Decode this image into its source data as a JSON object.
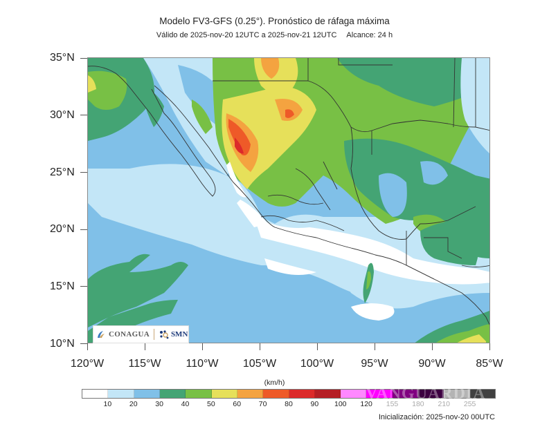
{
  "header": {
    "title": "Modelo FV3-GFS (0.25°). Pronóstico de ráfaga máxima",
    "valid": "Válido de 2025-nov-20 12UTC a 2025-nov-21 12UTC",
    "range": "Alcance: 24 h"
  },
  "map": {
    "lat_labels": [
      "35°N",
      "30°N",
      "25°N",
      "20°N",
      "15°N",
      "10°N"
    ],
    "lon_labels": [
      "120°W",
      "115°W",
      "110°W",
      "105°W",
      "100°W",
      "95°W",
      "90°W",
      "85°W"
    ],
    "extent": {
      "lon_min": -120,
      "lon_max": -85,
      "lat_min": 10,
      "lat_max": 35
    }
  },
  "logo": {
    "left": "CONAGUA",
    "right": "SMN"
  },
  "colorbar": {
    "units": "(km/h)",
    "colors": [
      "#ffffff",
      "#c3e6f7",
      "#80c0e8",
      "#44a474",
      "#78c045",
      "#e6e05a",
      "#f4a340",
      "#ee5a28",
      "#dc2a2a",
      "#b51e25",
      "#ff88ff",
      "#ff00ff",
      "#800080",
      "#3c0040",
      "#b4b4b4",
      "#404040"
    ],
    "labels": [
      "10",
      "20",
      "30",
      "40",
      "50",
      "60",
      "70",
      "80",
      "90",
      "100",
      "120",
      "155",
      "180",
      "210",
      "255"
    ]
  },
  "watermark": "VANGUARDIA",
  "footer": {
    "init": "Inicialización: 2025-nov-20 00UTC"
  }
}
